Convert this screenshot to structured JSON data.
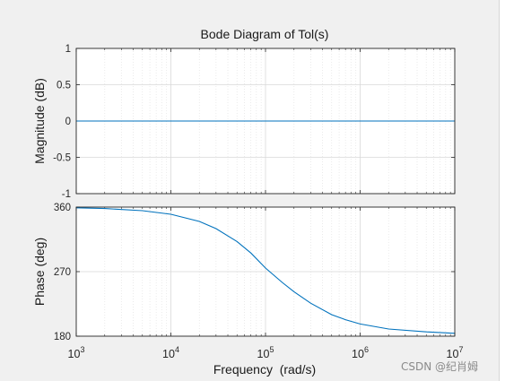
{
  "watermark": "CSDN @纪肖姆",
  "colors": {
    "background": "#f0f0f0",
    "plot_background": "#ffffff",
    "line": "#0072bd",
    "axis": "#262626",
    "grid": "#d9d9d9"
  },
  "chart_data": {
    "type": "line",
    "title": "Bode Diagram of Tol(s)",
    "xlabel": "Frequency  (rad/s)",
    "x_scale": "log",
    "xlim": [
      1000,
      10000000
    ],
    "x_ticks": [
      {
        "base": "10",
        "exp": "3"
      },
      {
        "base": "10",
        "exp": "4"
      },
      {
        "base": "10",
        "exp": "5"
      },
      {
        "base": "10",
        "exp": "6"
      },
      {
        "base": "10",
        "exp": "7"
      }
    ],
    "grid": true,
    "panels": [
      {
        "ylabel": "Magnitude (dB)",
        "ylim": [
          -1,
          1
        ],
        "yticks": [
          "-1",
          "-0.5",
          "0",
          "0.5",
          "1"
        ],
        "points": [
          [
            1000,
            0
          ],
          [
            10000,
            0
          ],
          [
            100000,
            0
          ],
          [
            1000000,
            0
          ],
          [
            10000000,
            0
          ]
        ]
      },
      {
        "ylabel": "Phase (deg)",
        "ylim": [
          180,
          360
        ],
        "yticks": [
          "180",
          "270",
          "360"
        ],
        "points": [
          [
            1000,
            359.0
          ],
          [
            2000,
            358.0
          ],
          [
            5000,
            355.0
          ],
          [
            10000,
            350.0
          ],
          [
            20000,
            340.0
          ],
          [
            30000,
            330.0
          ],
          [
            50000,
            312.0
          ],
          [
            70000,
            296.0
          ],
          [
            100000,
            275.0
          ],
          [
            150000,
            255.0
          ],
          [
            200000,
            242.0
          ],
          [
            300000,
            226.0
          ],
          [
            500000,
            210.0
          ],
          [
            700000,
            203.0
          ],
          [
            1000000,
            197.0
          ],
          [
            2000000,
            190.0
          ],
          [
            5000000,
            186.0
          ],
          [
            10000000,
            184.0
          ]
        ]
      }
    ]
  }
}
